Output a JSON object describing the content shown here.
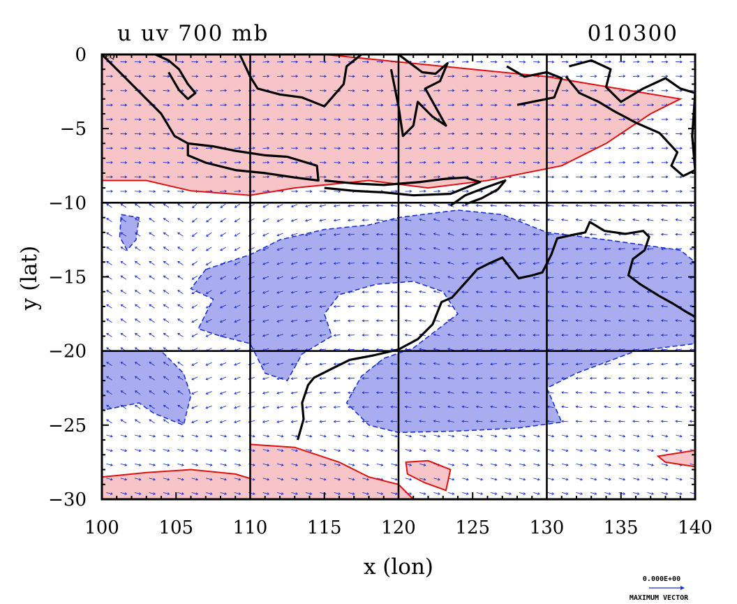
{
  "chart_data": {
    "type": "contour",
    "title_left": "u uv 700 mb",
    "title_right": "010300",
    "xlabel": "x (lon)",
    "ylabel": "y (lat)",
    "xlim": [
      100,
      140
    ],
    "ylim": [
      -30,
      0
    ],
    "x_ticks": [
      100,
      105,
      110,
      115,
      120,
      125,
      130,
      135,
      140
    ],
    "y_ticks": [
      0,
      -5,
      -10,
      -15,
      -20,
      -25,
      -30
    ],
    "grid_lines_lon": [
      110,
      120,
      130
    ],
    "grid_lines_lat": [
      -10,
      -20
    ],
    "corner_label": "EQ",
    "vector_key_value": "0.000E+00",
    "vector_key_label": "MAXIMUM VECTOR",
    "colors": {
      "positive_fill": "#f7c5c8",
      "positive_line": "#e01010",
      "negative_fill": "#a9acee",
      "negative_line": "#1a2fd6",
      "vectors": "#1a2fd6",
      "coast": "#000000"
    },
    "positive_regions": [
      {
        "name": "north-band",
        "points": [
          [
            100,
            0
          ],
          [
            115,
            0
          ],
          [
            120,
            -0.5
          ],
          [
            125,
            -1
          ],
          [
            130,
            -1.5
          ],
          [
            133,
            -2
          ],
          [
            139,
            -3
          ],
          [
            137,
            -4
          ],
          [
            134,
            -6
          ],
          [
            131,
            -7.5
          ],
          [
            126,
            -8.5
          ],
          [
            122,
            -9
          ],
          [
            118,
            -8.5
          ],
          [
            113,
            -9
          ],
          [
            110,
            -9.5
          ],
          [
            106,
            -9.2
          ],
          [
            103,
            -8.5
          ],
          [
            100,
            -8.5
          ]
        ]
      },
      {
        "name": "south-band-west",
        "points": [
          [
            100,
            -28.5
          ],
          [
            103,
            -28.2
          ],
          [
            106,
            -28
          ],
          [
            109,
            -28.3
          ],
          [
            110,
            -28.6
          ],
          [
            110,
            -30
          ],
          [
            100,
            -30
          ]
        ]
      },
      {
        "name": "south-band-center",
        "points": [
          [
            110,
            -26.3
          ],
          [
            113,
            -26.5
          ],
          [
            116,
            -27.5
          ],
          [
            118,
            -28.5
          ],
          [
            120,
            -29
          ],
          [
            121,
            -30
          ],
          [
            110,
            -30
          ]
        ]
      },
      {
        "name": "south-patch-east",
        "points": [
          [
            120.5,
            -27.5
          ],
          [
            122,
            -27.4
          ],
          [
            123.5,
            -28
          ],
          [
            123.2,
            -29.4
          ],
          [
            121.8,
            -28.9
          ],
          [
            120.6,
            -28.3
          ]
        ]
      },
      {
        "name": "east-edge-patch",
        "points": [
          [
            137.5,
            -27.1
          ],
          [
            140,
            -26.7
          ],
          [
            140,
            -27.8
          ],
          [
            138,
            -27.5
          ]
        ]
      }
    ],
    "negative_regions": [
      {
        "name": "central-band",
        "points": [
          [
            107,
            -14.5
          ],
          [
            110,
            -13.5
          ],
          [
            112,
            -12.5
          ],
          [
            115,
            -11.8
          ],
          [
            118,
            -11.5
          ],
          [
            120,
            -11
          ],
          [
            124,
            -10.5
          ],
          [
            127,
            -10.8
          ],
          [
            130,
            -12
          ],
          [
            134,
            -12.5
          ],
          [
            139,
            -13.2
          ],
          [
            140,
            -14
          ],
          [
            140,
            -19.5
          ],
          [
            136,
            -20
          ],
          [
            132,
            -21.5
          ],
          [
            130,
            -22.5
          ],
          [
            131,
            -24.8
          ],
          [
            128,
            -25.2
          ],
          [
            124,
            -25.4
          ],
          [
            120,
            -25.5
          ],
          [
            118,
            -25
          ],
          [
            116.5,
            -23.5
          ],
          [
            117.5,
            -21.7
          ],
          [
            119,
            -20.5
          ],
          [
            121,
            -19.8
          ],
          [
            124,
            -17.5
          ],
          [
            123,
            -16
          ],
          [
            121,
            -15.3
          ],
          [
            118.5,
            -15.5
          ],
          [
            116,
            -16.2
          ],
          [
            115,
            -17.5
          ],
          [
            115.5,
            -19
          ],
          [
            113.5,
            -20.2
          ],
          [
            112.5,
            -22
          ],
          [
            111,
            -21.5
          ],
          [
            110,
            -19.5
          ],
          [
            108,
            -19
          ],
          [
            106.5,
            -18.5
          ],
          [
            107.5,
            -16.5
          ],
          [
            106,
            -15.8
          ]
        ]
      },
      {
        "name": "west-strip",
        "points": [
          [
            100,
            -20
          ],
          [
            104,
            -20
          ],
          [
            105.5,
            -21.5
          ],
          [
            106,
            -23
          ],
          [
            105.5,
            -25
          ],
          [
            103.5,
            -24.2
          ],
          [
            102.5,
            -23.5
          ],
          [
            100,
            -24
          ]
        ]
      },
      {
        "name": "west-small",
        "points": [
          [
            101.3,
            -10.8
          ],
          [
            102.5,
            -11
          ],
          [
            102.3,
            -12.5
          ],
          [
            101.7,
            -13.2
          ],
          [
            101.2,
            -12.3
          ]
        ]
      }
    ],
    "coastlines": [
      {
        "name": "sumatra",
        "points": [
          [
            100,
            0
          ],
          [
            101.5,
            -1.5
          ],
          [
            103,
            -3
          ],
          [
            104,
            -4
          ],
          [
            104.9,
            -5.5
          ],
          [
            105.8,
            -6
          ]
        ]
      },
      {
        "name": "java",
        "points": [
          [
            105.8,
            -6
          ],
          [
            107.5,
            -6.2
          ],
          [
            109,
            -6.5
          ],
          [
            111,
            -6.8
          ],
          [
            112.5,
            -6.9
          ],
          [
            114.5,
            -7.5
          ],
          [
            114.6,
            -8.5
          ],
          [
            113,
            -8.3
          ],
          [
            111,
            -8
          ],
          [
            109,
            -7.8
          ],
          [
            107,
            -7.3
          ],
          [
            105.8,
            -6.8
          ],
          [
            105.8,
            -6
          ]
        ]
      },
      {
        "name": "borneo",
        "points": [
          [
            103.6,
            0
          ],
          [
            104.5,
            -0.4
          ],
          [
            105.2,
            -1
          ],
          [
            105.8,
            -2
          ],
          [
            106.3,
            -2.6
          ],
          [
            105.8,
            -3
          ],
          [
            105.2,
            -2.4
          ],
          [
            104.5,
            -1.2
          ]
        ]
      },
      {
        "name": "kalimantan",
        "points": [
          [
            109.3,
            0
          ],
          [
            110,
            -1.5
          ],
          [
            110.5,
            -2.3
          ],
          [
            112,
            -2.7
          ],
          [
            113.5,
            -2.9
          ],
          [
            115,
            -3.5
          ],
          [
            116.3,
            -2
          ],
          [
            116.5,
            -0.8
          ],
          [
            117.5,
            0
          ]
        ]
      },
      {
        "name": "sulawesi",
        "points": [
          [
            120,
            0
          ],
          [
            121.6,
            -1.2
          ],
          [
            122.5,
            -1.3
          ],
          [
            123.3,
            -0.6
          ],
          [
            122.8,
            -1.8
          ],
          [
            121.8,
            -2.3
          ],
          [
            123.2,
            -4.8
          ],
          [
            122.3,
            -4.2
          ],
          [
            121.3,
            -3.2
          ],
          [
            121,
            -4.8
          ],
          [
            120.3,
            -5.5
          ],
          [
            120,
            -3.5
          ],
          [
            119.5,
            -1
          ]
        ]
      },
      {
        "name": "lesser-sunda",
        "points": [
          [
            115,
            -8.5
          ],
          [
            117,
            -8.7
          ],
          [
            119,
            -8.8
          ],
          [
            121.5,
            -8.6
          ],
          [
            123,
            -8.4
          ],
          [
            124.5,
            -8.3
          ],
          [
            125.5,
            -8.6
          ],
          [
            123.5,
            -9.4
          ],
          [
            121,
            -9.5
          ],
          [
            119,
            -9.3
          ],
          [
            117,
            -9.2
          ],
          [
            115,
            -9
          ]
        ]
      },
      {
        "name": "timor",
        "points": [
          [
            123.5,
            -10.2
          ],
          [
            124.5,
            -9.5
          ],
          [
            125.8,
            -9
          ],
          [
            127.2,
            -8.5
          ],
          [
            126.7,
            -9.1
          ],
          [
            125.6,
            -9.7
          ],
          [
            124.5,
            -10.1
          ]
        ]
      },
      {
        "name": "maluku",
        "points": [
          [
            127.3,
            -0.8
          ],
          [
            128.5,
            -1.5
          ],
          [
            130,
            -1.2
          ],
          [
            131,
            -1.6
          ],
          [
            130.5,
            -2.9
          ],
          [
            129,
            -3.2
          ],
          [
            128,
            -3.4
          ]
        ]
      },
      {
        "name": "new-guinea",
        "points": [
          [
            131.5,
            -0.8
          ],
          [
            133,
            -0.4
          ],
          [
            134.3,
            -1
          ],
          [
            134,
            -2.2
          ],
          [
            135,
            -3.2
          ],
          [
            136.5,
            -2.3
          ],
          [
            138,
            -1.6
          ],
          [
            139,
            -2.3
          ],
          [
            140,
            -2.6
          ],
          [
            139.8,
            -5.5
          ],
          [
            140,
            -7.8
          ],
          [
            139.2,
            -8.2
          ],
          [
            138.4,
            -7.5
          ],
          [
            138.8,
            -6.6
          ],
          [
            137.6,
            -5.3
          ],
          [
            136,
            -4.6
          ],
          [
            134.5,
            -3.8
          ],
          [
            133.5,
            -3.2
          ],
          [
            132.2,
            -2.6
          ],
          [
            131.3,
            -1.5
          ]
        ]
      },
      {
        "name": "australia",
        "points": [
          [
            113.2,
            -26
          ],
          [
            113.6,
            -24.6
          ],
          [
            113.5,
            -23.5
          ],
          [
            113.9,
            -22.3
          ],
          [
            114.3,
            -21.8
          ],
          [
            115.5,
            -21.2
          ],
          [
            116.7,
            -20.6
          ],
          [
            118.3,
            -20.3
          ],
          [
            120,
            -19.9
          ],
          [
            121.3,
            -19.2
          ],
          [
            122.3,
            -18.2
          ],
          [
            122.9,
            -16.7
          ],
          [
            123.6,
            -16.4
          ],
          [
            124.5,
            -15.4
          ],
          [
            125.3,
            -14.5
          ],
          [
            126.1,
            -14.1
          ],
          [
            127,
            -13.7
          ],
          [
            128.1,
            -15.1
          ],
          [
            129,
            -14.9
          ],
          [
            129.7,
            -14.7
          ],
          [
            130.3,
            -13.5
          ],
          [
            130.7,
            -12.4
          ],
          [
            131.6,
            -12.2
          ],
          [
            132.6,
            -12
          ],
          [
            132.9,
            -11.3
          ],
          [
            133.9,
            -11.9
          ],
          [
            135.3,
            -12.1
          ],
          [
            136.5,
            -11.9
          ],
          [
            136.9,
            -12.3
          ],
          [
            136.6,
            -13.2
          ],
          [
            135.8,
            -13.8
          ],
          [
            135.5,
            -14.9
          ],
          [
            136.3,
            -15.5
          ],
          [
            137.6,
            -16.3
          ],
          [
            138.5,
            -16.8
          ],
          [
            139.3,
            -17.3
          ],
          [
            140,
            -17.7
          ]
        ]
      }
    ]
  }
}
